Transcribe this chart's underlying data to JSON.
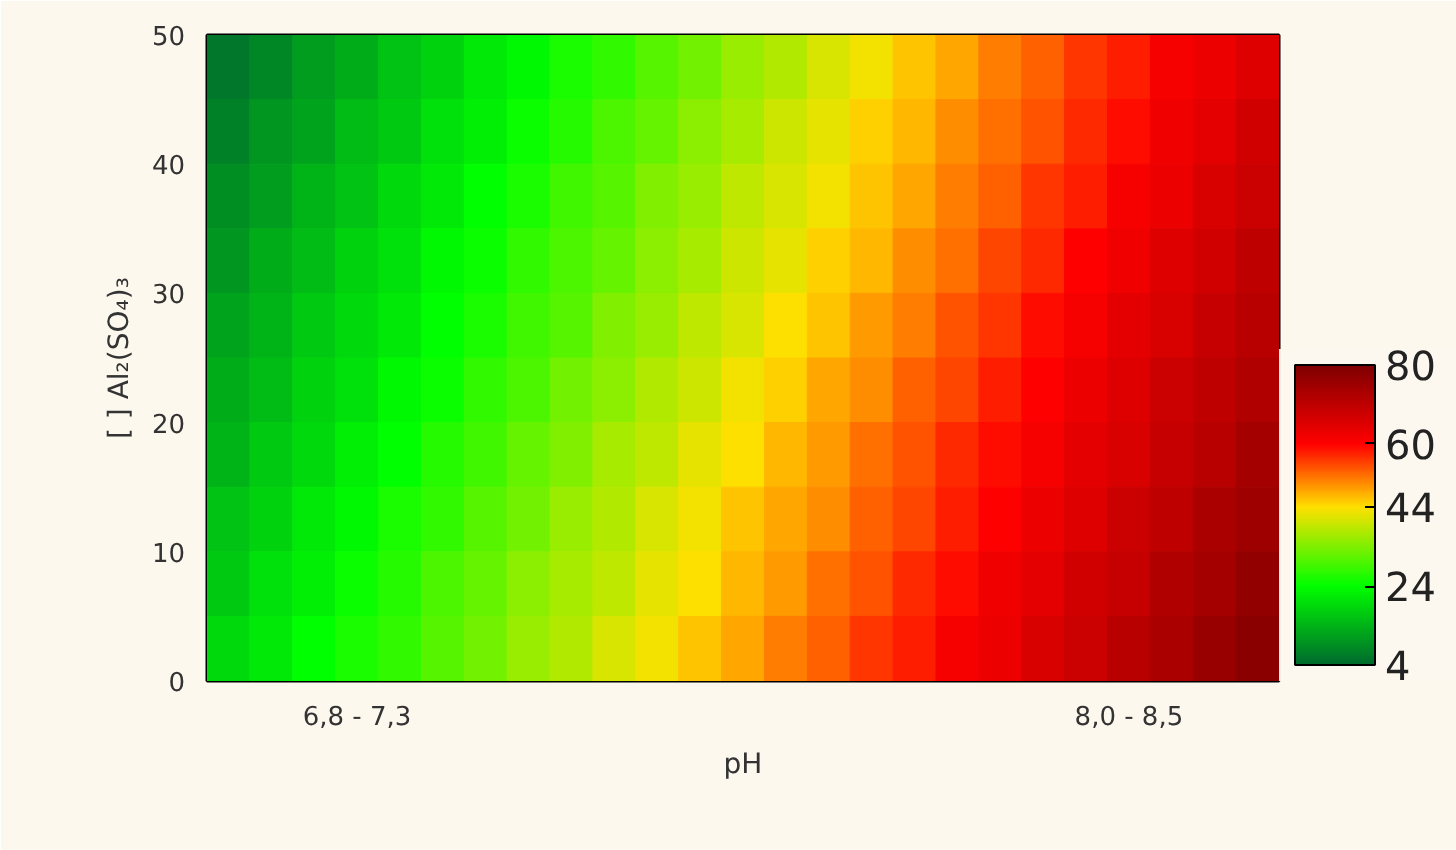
{
  "chart_data": {
    "type": "heatmap",
    "xlabel": "pH",
    "ylabel": "[ ] Al₂(SO₄)₃",
    "categories": [
      null,
      null,
      null,
      "6,8 - 7,3",
      null,
      null,
      null,
      null,
      null,
      null,
      null,
      null,
      null,
      null,
      null,
      null,
      null,
      null,
      null,
      null,
      null,
      "8,0 - 8,5",
      null,
      null,
      null
    ],
    "ylim": [
      0,
      50
    ],
    "yticks": [
      0,
      10,
      20,
      30,
      40,
      50
    ],
    "cells": [
      [
        6,
        8,
        11,
        13,
        16,
        18,
        21,
        23,
        26,
        28,
        31,
        33,
        36,
        38,
        41,
        43,
        46,
        48,
        51,
        53,
        56,
        58,
        61,
        63,
        65
      ],
      [
        7,
        10,
        12,
        15,
        17,
        20,
        22,
        25,
        27,
        30,
        32,
        35,
        37,
        40,
        42,
        45,
        47,
        50,
        52,
        54,
        57,
        59,
        62,
        64,
        67
      ],
      [
        9,
        11,
        14,
        16,
        19,
        21,
        24,
        26,
        29,
        31,
        34,
        36,
        39,
        41,
        43,
        46,
        48,
        51,
        53,
        56,
        58,
        61,
        63,
        66,
        68
      ],
      [
        10,
        13,
        15,
        18,
        20,
        23,
        25,
        28,
        30,
        32,
        35,
        37,
        40,
        42,
        45,
        47,
        50,
        52,
        55,
        57,
        60,
        62,
        65,
        67,
        70
      ],
      [
        12,
        14,
        17,
        19,
        21,
        24,
        26,
        29,
        31,
        34,
        36,
        39,
        41,
        44,
        46,
        49,
        51,
        54,
        56,
        59,
        61,
        64,
        66,
        69,
        71
      ],
      [
        13,
        15,
        18,
        20,
        23,
        25,
        28,
        30,
        33,
        35,
        38,
        40,
        43,
        45,
        48,
        50,
        53,
        55,
        58,
        60,
        63,
        65,
        68,
        70,
        72
      ],
      [
        14,
        17,
        19,
        22,
        24,
        27,
        29,
        32,
        34,
        37,
        39,
        42,
        44,
        47,
        49,
        52,
        54,
        57,
        59,
        61,
        64,
        66,
        69,
        71,
        74
      ],
      [
        16,
        18,
        21,
        23,
        26,
        28,
        31,
        33,
        36,
        38,
        41,
        43,
        46,
        48,
        50,
        53,
        55,
        58,
        60,
        63,
        65,
        68,
        70,
        73,
        75
      ],
      [
        17,
        20,
        22,
        25,
        27,
        30,
        32,
        35,
        37,
        39,
        42,
        44,
        47,
        49,
        52,
        54,
        57,
        59,
        62,
        64,
        67,
        69,
        72,
        74,
        77
      ],
      [
        19,
        21,
        24,
        26,
        28,
        31,
        33,
        36,
        38,
        41,
        43,
        46,
        48,
        51,
        53,
        56,
        58,
        61,
        63,
        66,
        68,
        71,
        73,
        76,
        78
      ]
    ],
    "clim": [
      4,
      80
    ],
    "cticks": [
      4,
      24,
      44,
      60,
      80
    ],
    "colors": [
      "#006a2e",
      "#00ff00",
      "#ffe000",
      "#ff0000",
      "#7f0000"
    ]
  }
}
